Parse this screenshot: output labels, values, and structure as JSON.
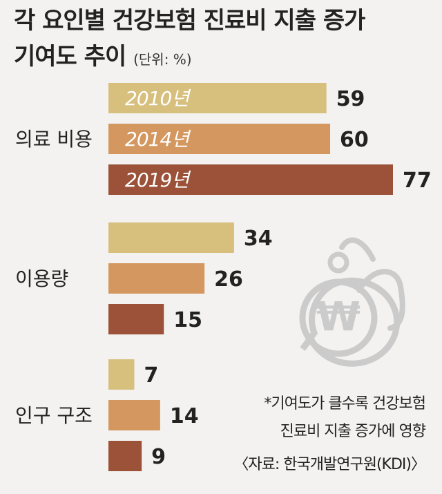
{
  "title": {
    "line1": "각 요인별 건강보험 진료비 지출 증가",
    "line2": "기여도 추이",
    "unit": "(단위: %)"
  },
  "chart_data": {
    "type": "bar",
    "orientation": "horizontal",
    "categories": [
      "의료 비용",
      "이용량",
      "인구 구조"
    ],
    "series": [
      {
        "name": "2010년",
        "values": [
          59,
          34,
          7
        ],
        "color": "#d7bf7e"
      },
      {
        "name": "2014년",
        "values": [
          60,
          26,
          14
        ],
        "color": "#d4975f"
      },
      {
        "name": "2019년",
        "values": [
          77,
          15,
          9
        ],
        "color": "#9b5238"
      }
    ],
    "xlim": [
      0,
      80
    ],
    "grid": false,
    "legend": "inside-bars"
  },
  "notes": {
    "line1": "*기여도가 클수록 건강보험",
    "line2": "진료비 지출 증가에 영향",
    "source": "〈자료: 한국개발연구원(KDI)〉"
  },
  "icon": "stethoscope-won-icon"
}
